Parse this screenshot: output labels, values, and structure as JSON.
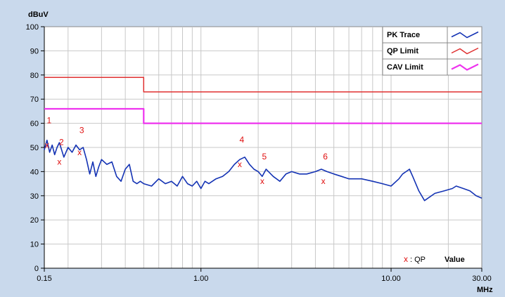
{
  "colors": {
    "background": "#c9d9ec",
    "plot_background": "#ffffff",
    "pk_trace": "#1433b4",
    "qp_limit": "#e03030",
    "cav_limit": "#ee33ee",
    "markers": "#e01010"
  },
  "chart_data": {
    "type": "line",
    "ylabel": "dBuV",
    "xlabel": "MHz",
    "x_scale": "log",
    "xlim": [
      0.15,
      30.0
    ],
    "ylim": [
      0,
      100
    ],
    "grid": true,
    "legend_position": "top-right",
    "y_ticks": [
      "0",
      "10",
      "20",
      "30",
      "40",
      "50",
      "60",
      "70",
      "80",
      "90",
      "100"
    ],
    "x_ticks": [
      {
        "value": 0.15,
        "label": "0.15"
      },
      {
        "value": 1.0,
        "label": "1.00"
      },
      {
        "value": 10.0,
        "label": "10.00"
      },
      {
        "value": 30.0,
        "label": "30.00"
      }
    ],
    "series": [
      {
        "name": "PK Trace",
        "style": "line",
        "x": [
          0.15,
          0.155,
          0.16,
          0.165,
          0.17,
          0.175,
          0.18,
          0.19,
          0.2,
          0.21,
          0.22,
          0.23,
          0.24,
          0.25,
          0.26,
          0.27,
          0.28,
          0.29,
          0.3,
          0.32,
          0.34,
          0.36,
          0.38,
          0.4,
          0.42,
          0.44,
          0.46,
          0.48,
          0.5,
          0.55,
          0.6,
          0.65,
          0.7,
          0.75,
          0.8,
          0.85,
          0.9,
          0.95,
          1.0,
          1.05,
          1.1,
          1.2,
          1.3,
          1.4,
          1.5,
          1.6,
          1.7,
          1.8,
          1.9,
          2.0,
          2.1,
          2.2,
          2.4,
          2.6,
          2.8,
          3.0,
          3.3,
          3.6,
          4.0,
          4.3,
          4.6,
          5.0,
          5.5,
          6.0,
          7.0,
          8.0,
          9.0,
          10.0,
          11.0,
          11.5,
          12.0,
          12.5,
          13.0,
          14.0,
          15.0,
          17.0,
          19.0,
          21.0,
          22.0,
          24.0,
          26.0,
          28.0,
          30.0
        ],
        "y": [
          49,
          53,
          48,
          51,
          47,
          50,
          52,
          46,
          50,
          48,
          51,
          49,
          50,
          45,
          39,
          44,
          38,
          42,
          45,
          43,
          44,
          38,
          36,
          41,
          43,
          36,
          35,
          36,
          35,
          34,
          37,
          35,
          36,
          34,
          38,
          35,
          34,
          36,
          33,
          36,
          35,
          37,
          38,
          40,
          43,
          45,
          46,
          43,
          41,
          40,
          38,
          41,
          38,
          36,
          39,
          40,
          39,
          39,
          40,
          41,
          40,
          39,
          38,
          37,
          37,
          36,
          35,
          34,
          37,
          39,
          40,
          41,
          38,
          32,
          28,
          31,
          32,
          33,
          34,
          33,
          32,
          30,
          29
        ]
      },
      {
        "name": "QP Limit",
        "style": "step",
        "x": [
          0.15,
          0.5,
          0.5,
          30.0
        ],
        "y": [
          79,
          79,
          73,
          73
        ]
      },
      {
        "name": "CAV Limit",
        "style": "step",
        "x": [
          0.15,
          0.5,
          0.5,
          30.0
        ],
        "y": [
          66,
          66,
          60,
          60
        ]
      }
    ],
    "qp_markers": [
      {
        "label": "1",
        "x": 0.155,
        "y": 51,
        "label_y": 60
      },
      {
        "label": "2",
        "x": 0.18,
        "y": 44,
        "label_y": 51
      },
      {
        "label": "3",
        "x": 0.23,
        "y": 48,
        "label_y": 56
      },
      {
        "label": "4",
        "x": 1.6,
        "y": 43,
        "label_y": 52
      },
      {
        "label": "5",
        "x": 2.1,
        "y": 36,
        "label_y": 45
      },
      {
        "label": "6",
        "x": 4.4,
        "y": 36,
        "label_y": 45
      }
    ],
    "qp_note": {
      "symbol": "x",
      "text": ": QP",
      "value_label": "Value"
    }
  }
}
